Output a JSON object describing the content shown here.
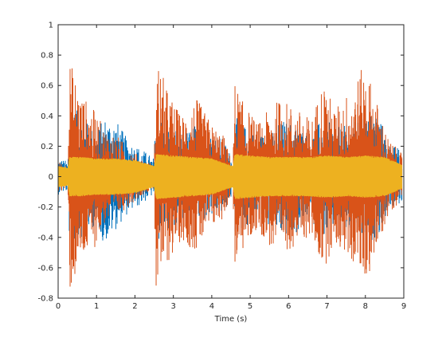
{
  "chart_data": {
    "type": "line",
    "xlabel": "Time (s)",
    "ylabel": "",
    "title": "",
    "xlim": [
      0,
      9
    ],
    "ylim": [
      -0.8,
      1
    ],
    "xticks": [
      0,
      1,
      2,
      3,
      4,
      5,
      6,
      7,
      8,
      9
    ],
    "yticks": [
      -0.8,
      -0.6,
      -0.4,
      -0.2,
      0,
      0.2,
      0.4,
      0.6,
      0.8,
      1
    ],
    "xtick_labels": [
      "0",
      "1",
      "2",
      "3",
      "4",
      "5",
      "6",
      "7",
      "8",
      "9"
    ],
    "ytick_labels": [
      "-0.8",
      "-0.6",
      "-0.4",
      "-0.2",
      "0",
      "0.2",
      "0.4",
      "0.6",
      "0.8",
      "1"
    ],
    "grid": false,
    "legend": false,
    "series": [
      {
        "color": "#0072BD",
        "x": [
          0,
          0.25,
          0.3,
          0.6,
          1.0,
          1.2,
          1.5,
          1.8,
          2.2,
          2.5,
          2.55,
          2.8,
          3.2,
          3.6,
          4.0,
          4.3,
          4.55,
          4.6,
          4.8,
          5.2,
          5.6,
          5.8,
          6.2,
          6.6,
          6.9,
          7.2,
          7.6,
          8.0,
          8.3,
          8.6,
          8.95
        ],
        "upper": [
          0.13,
          0.1,
          0.5,
          0.4,
          0.3,
          0.4,
          0.38,
          0.25,
          0.18,
          0.12,
          0.45,
          0.35,
          0.28,
          0.35,
          0.3,
          0.25,
          0.12,
          0.4,
          0.35,
          0.28,
          0.3,
          0.38,
          0.35,
          0.28,
          0.4,
          0.32,
          0.35,
          0.4,
          0.45,
          0.22,
          0.18
        ],
        "lower": [
          -0.12,
          -0.1,
          -0.45,
          -0.4,
          -0.32,
          -0.45,
          -0.35,
          -0.25,
          -0.18,
          -0.12,
          -0.45,
          -0.35,
          -0.3,
          -0.32,
          -0.28,
          -0.25,
          -0.12,
          -0.42,
          -0.35,
          -0.28,
          -0.35,
          -0.4,
          -0.38,
          -0.3,
          -0.4,
          -0.35,
          -0.38,
          -0.45,
          -0.42,
          -0.22,
          -0.18
        ]
      },
      {
        "color": "#D95319",
        "x": [
          0,
          0.25,
          0.3,
          0.6,
          1.0,
          1.2,
          1.5,
          1.8,
          2.2,
          2.5,
          2.55,
          2.8,
          3.2,
          3.6,
          4.0,
          4.3,
          4.55,
          4.6,
          4.8,
          5.2,
          5.6,
          5.8,
          6.2,
          6.6,
          6.9,
          7.2,
          7.6,
          8.0,
          8.3,
          8.6,
          8.95
        ],
        "upper": [
          0.1,
          0.08,
          0.78,
          0.55,
          0.42,
          0.32,
          0.28,
          0.2,
          0.12,
          0.08,
          0.84,
          0.6,
          0.4,
          0.52,
          0.35,
          0.28,
          0.08,
          0.63,
          0.5,
          0.35,
          0.48,
          0.52,
          0.45,
          0.38,
          0.65,
          0.45,
          0.58,
          0.75,
          0.5,
          0.25,
          0.15
        ],
        "lower": [
          -0.1,
          -0.08,
          -0.78,
          -0.58,
          -0.45,
          -0.32,
          -0.28,
          -0.2,
          -0.12,
          -0.08,
          -0.78,
          -0.6,
          -0.42,
          -0.5,
          -0.35,
          -0.28,
          -0.08,
          -0.63,
          -0.5,
          -0.35,
          -0.5,
          -0.52,
          -0.45,
          -0.4,
          -0.62,
          -0.45,
          -0.55,
          -0.7,
          -0.5,
          -0.25,
          -0.15
        ]
      },
      {
        "color": "#EDB120",
        "x": [
          0,
          0.25,
          0.3,
          0.6,
          1.0,
          1.5,
          2.0,
          2.5,
          2.55,
          3.0,
          3.5,
          4.0,
          4.55,
          4.6,
          5.0,
          5.5,
          6.0,
          6.5,
          7.0,
          7.5,
          8.0,
          8.5,
          8.95
        ],
        "upper": [
          0.07,
          0.06,
          0.13,
          0.13,
          0.12,
          0.12,
          0.11,
          0.07,
          0.15,
          0.14,
          0.13,
          0.12,
          0.07,
          0.15,
          0.14,
          0.13,
          0.13,
          0.13,
          0.14,
          0.13,
          0.14,
          0.13,
          0.08
        ],
        "lower": [
          -0.07,
          -0.06,
          -0.13,
          -0.13,
          -0.12,
          -0.12,
          -0.11,
          -0.07,
          -0.15,
          -0.14,
          -0.13,
          -0.12,
          -0.07,
          -0.15,
          -0.14,
          -0.13,
          -0.13,
          -0.13,
          -0.14,
          -0.13,
          -0.14,
          -0.13,
          -0.08
        ]
      }
    ]
  }
}
